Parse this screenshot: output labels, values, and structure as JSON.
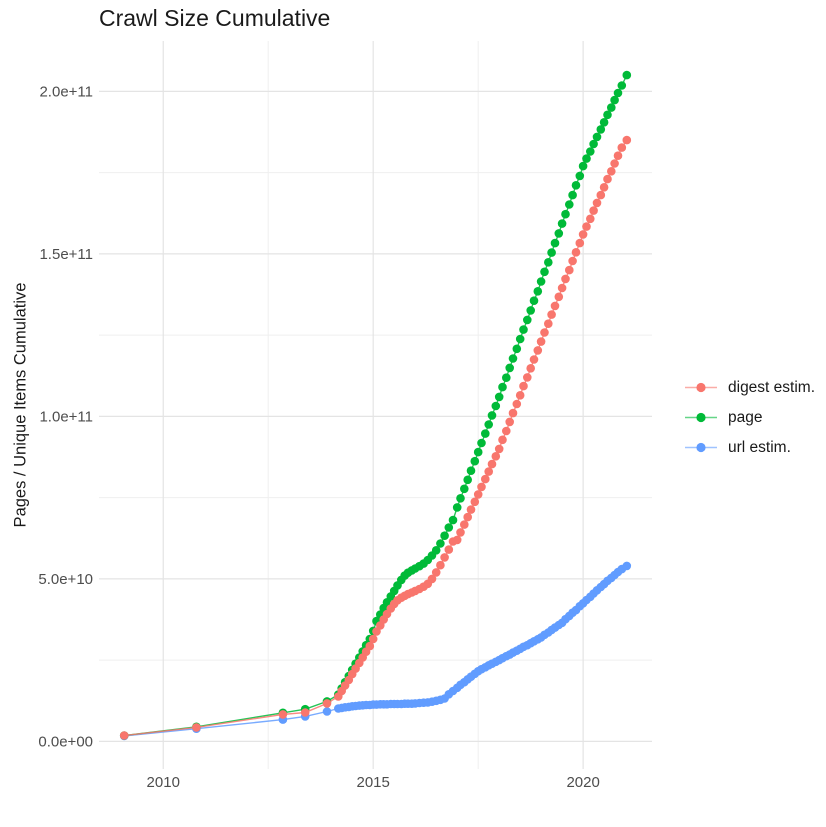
{
  "chart_data": {
    "type": "scatter",
    "title": "Crawl Size Cumulative",
    "xlabel": "",
    "ylabel": "Pages / Unique Items Cumulative",
    "legend_position": "right",
    "grid": true,
    "x_ticks": [
      2010,
      2015,
      2020
    ],
    "x_tick_labels": [
      "2010",
      "2015",
      "2020"
    ],
    "x_minor_ticks": [
      2012.5,
      2017.5
    ],
    "y_ticks_e9": [
      0,
      50,
      100,
      150,
      200
    ],
    "y_tick_labels": [
      "0.0e+00",
      "5.0e+10",
      "1.0e+11",
      "1.5e+11",
      "2.0e+11"
    ],
    "y_minor_ticks_e9": [
      25,
      75,
      125,
      175
    ],
    "y_unit_multiplier": 1000000000,
    "xlim": [
      2008.47,
      2021.64
    ],
    "ylim_e9": [
      -8.5,
      215.5
    ],
    "grid_major_color": "#E4E4E4",
    "grid_minor_color": "#EFEFEF",
    "tick_label_color": "#4D4D4D",
    "x": [
      2009.07,
      2010.79,
      2012.85,
      2013.38,
      2013.9,
      2014.17,
      2014.25,
      2014.33,
      2014.42,
      2014.5,
      2014.58,
      2014.67,
      2014.75,
      2014.83,
      2014.92,
      2015.0,
      2015.08,
      2015.17,
      2015.25,
      2015.33,
      2015.42,
      2015.5,
      2015.58,
      2015.67,
      2015.75,
      2015.83,
      2015.92,
      2016.0,
      2016.1,
      2016.2,
      2016.3,
      2016.4,
      2016.5,
      2016.6,
      2016.7,
      2016.8,
      2016.9,
      2017.0,
      2017.08,
      2017.17,
      2017.25,
      2017.33,
      2017.42,
      2017.5,
      2017.58,
      2017.67,
      2017.75,
      2017.83,
      2017.92,
      2018.0,
      2018.08,
      2018.17,
      2018.25,
      2018.33,
      2018.42,
      2018.5,
      2018.58,
      2018.67,
      2018.75,
      2018.83,
      2018.92,
      2019.0,
      2019.08,
      2019.17,
      2019.25,
      2019.33,
      2019.42,
      2019.5,
      2019.58,
      2019.67,
      2019.75,
      2019.83,
      2019.92,
      2020.0,
      2020.08,
      2020.17,
      2020.25,
      2020.33,
      2020.42,
      2020.5,
      2020.58,
      2020.67,
      2020.75,
      2020.83,
      2020.92,
      2021.04
    ],
    "series": [
      {
        "name": "digest estim.",
        "color": "#F8766D",
        "values_e9": [
          1.8,
          4.3,
          8.3,
          8.9,
          11.7,
          13.8,
          15.5,
          17.2,
          18.9,
          20.7,
          22.4,
          24.1,
          25.8,
          27.6,
          29.3,
          31.5,
          33.8,
          35.7,
          37.5,
          39.2,
          40.9,
          42.3,
          43.4,
          44.2,
          44.8,
          45.3,
          45.8,
          46.3,
          46.9,
          47.6,
          48.5,
          50.0,
          52.0,
          54.2,
          56.6,
          59.0,
          61.5,
          62.0,
          64.3,
          66.7,
          69.0,
          71.3,
          73.7,
          76.0,
          78.3,
          80.7,
          83.0,
          85.3,
          87.7,
          90.0,
          92.8,
          95.5,
          98.3,
          101.0,
          103.8,
          106.5,
          109.3,
          112.0,
          114.8,
          117.5,
          120.3,
          123.0,
          125.8,
          128.5,
          131.3,
          134.0,
          136.8,
          139.5,
          142.3,
          145.0,
          147.8,
          150.5,
          153.3,
          156.0,
          158.4,
          160.8,
          163.3,
          165.7,
          168.1,
          170.5,
          173.0,
          175.4,
          177.8,
          180.2,
          182.7,
          185.0
        ]
      },
      {
        "name": "page",
        "color": "#00BA38",
        "values_e9": [
          1.8,
          4.5,
          8.8,
          9.9,
          12.3,
          14.4,
          16.3,
          18.2,
          20.1,
          22.0,
          23.9,
          25.8,
          27.7,
          29.6,
          31.5,
          34.0,
          37.0,
          39.0,
          41.0,
          42.8,
          44.6,
          46.3,
          48.0,
          49.7,
          51.0,
          51.9,
          52.6,
          53.2,
          53.9,
          54.7,
          55.8,
          57.2,
          58.8,
          60.9,
          63.3,
          65.8,
          68.1,
          72.0,
          74.8,
          77.7,
          80.5,
          83.3,
          86.2,
          89.0,
          91.8,
          94.7,
          97.5,
          100.3,
          103.2,
          106.0,
          109.0,
          111.9,
          114.9,
          117.8,
          120.8,
          123.8,
          126.7,
          129.7,
          132.6,
          135.6,
          138.5,
          141.5,
          144.5,
          147.4,
          150.4,
          153.3,
          156.3,
          159.3,
          162.2,
          165.2,
          168.1,
          171.1,
          174.0,
          177.0,
          179.3,
          181.5,
          183.8,
          186.0,
          188.3,
          190.5,
          192.8,
          195.0,
          197.3,
          199.5,
          201.8,
          205.0
        ]
      },
      {
        "name": "url estim.",
        "color": "#619CFF",
        "values_e9": [
          1.7,
          3.9,
          6.7,
          7.7,
          9.2,
          10.1,
          10.3,
          10.5,
          10.6,
          10.8,
          10.9,
          11.0,
          11.1,
          11.2,
          11.2,
          11.3,
          11.3,
          11.4,
          11.4,
          11.4,
          11.5,
          11.5,
          11.5,
          11.5,
          11.6,
          11.6,
          11.6,
          11.7,
          11.8,
          11.9,
          12.0,
          12.2,
          12.5,
          12.8,
          13.2,
          14.5,
          15.5,
          16.5,
          17.4,
          18.2,
          19.1,
          19.9,
          20.8,
          21.6,
          22.2,
          22.8,
          23.4,
          23.9,
          24.5,
          25.0,
          25.6,
          26.2,
          26.7,
          27.3,
          27.9,
          28.5,
          29.1,
          29.6,
          30.2,
          30.8,
          31.4,
          32.0,
          32.8,
          33.5,
          34.3,
          35.0,
          35.8,
          36.5,
          37.6,
          38.6,
          39.6,
          40.4,
          41.6,
          42.5,
          43.5,
          44.5,
          45.5,
          46.5,
          47.5,
          48.4,
          49.4,
          50.3,
          51.2,
          52.1,
          53.0,
          54.0
        ]
      }
    ]
  }
}
